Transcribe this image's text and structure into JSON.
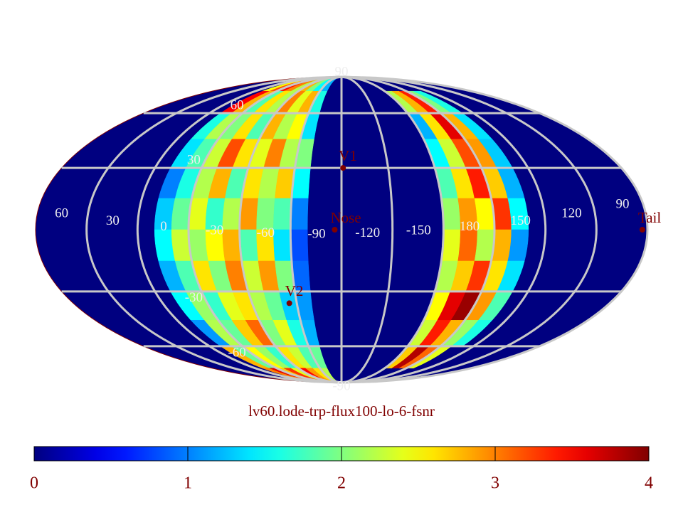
{
  "chart_data": {
    "type": "mollweide-heatmap",
    "title": "lv60.lode-trp-flux100-lo-6-fsnr",
    "colormap": "jet",
    "center_lon": -90,
    "lon_ticks": [
      60,
      30,
      0,
      -30,
      -60,
      -90,
      -120,
      -150,
      180,
      150,
      120,
      90
    ],
    "lat_ticks": [
      90,
      60,
      30,
      -30,
      -60,
      -90
    ],
    "lat_edges": [
      90,
      75,
      60,
      45,
      30,
      15,
      0,
      -15,
      -30,
      -45,
      -60,
      -75,
      -90
    ],
    "swaths": [
      {
        "lon_edges": [
          20,
          10,
          0,
          -10,
          -20,
          -30,
          -40,
          -50,
          -60,
          -70
        ],
        "values": [
          [
            2.5,
            3.2,
            3.5,
            3,
            2.2,
            2.8,
            2,
            1.5,
            1.2
          ],
          [
            3.5,
            2.8,
            1.8,
            2.6,
            2.2,
            3,
            2.4,
            2.8,
            1.6
          ],
          [
            1.6,
            2.2,
            2,
            2.6,
            1.8,
            2.8,
            2.2,
            2.5,
            1.4
          ],
          [
            1.4,
            1.8,
            2.3,
            3.2,
            2.6,
            2.4,
            3,
            2.2,
            2
          ],
          [
            1,
            1.6,
            2.2,
            2.8,
            1.8,
            2.6,
            2.2,
            2.7,
            1.5
          ],
          [
            1.3,
            1.9,
            2.4,
            1.7,
            2.2,
            2.9,
            2,
            1.8,
            1
          ],
          [
            1.5,
            2.3,
            2.1,
            2.5,
            2.8,
            1.8,
            2.6,
            1.4,
            0.8
          ],
          [
            1.2,
            1.8,
            2.6,
            2,
            3,
            2.3,
            2.9,
            2,
            0.9
          ],
          [
            1.5,
            2.1,
            1.7,
            2.4,
            2.6,
            2.2,
            1.9,
            1.3,
            1.1
          ],
          [
            1.1,
            2.2,
            1.9,
            2.7,
            3.1,
            2,
            2.4,
            1.6,
            1.2
          ],
          [
            2.8,
            1.9,
            2.5,
            2.1,
            1.7,
            2.6,
            2.3,
            1.8,
            1.9
          ],
          [
            3,
            3.6,
            2.7,
            3.3,
            2.4,
            3.5,
            2.9,
            2.6,
            2.2
          ]
        ]
      },
      {
        "lon_edges": [
          -150,
          -160,
          -170,
          -180,
          -190,
          -200
        ],
        "values": [
          [
            null,
            null,
            null,
            null,
            null
          ],
          [
            2.2,
            2.8,
            3.4,
            2,
            1.6
          ],
          [
            1.2,
            2.6,
            3.6,
            2.8,
            1.4
          ],
          [
            1.5,
            2.3,
            3.2,
            2.9,
            1.3
          ],
          [
            1.8,
            2.6,
            3.4,
            2.7,
            1.2
          ],
          [
            2.1,
            2.9,
            2.5,
            3.3,
            1.5
          ],
          [
            2.4,
            3.1,
            2.2,
            2.8,
            1.1
          ],
          [
            2.2,
            2.7,
            3.3,
            2.6,
            1.4
          ],
          [
            2.5,
            3.6,
            3.9,
            2.9,
            1.8
          ],
          [
            2.3,
            3.4,
            2.8,
            2.1,
            1.6
          ],
          [
            2.7,
            3.8,
            3.1,
            2.4,
            null
          ],
          [
            null,
            null,
            null,
            null,
            null
          ]
        ]
      }
    ],
    "markers": [
      {
        "label": "V1",
        "lon": -91,
        "lat": 30
      },
      {
        "label": "Nose",
        "lon": -86,
        "lat": 0
      },
      {
        "label": "V2",
        "lon": -55,
        "lat": -36
      },
      {
        "label": "Tail",
        "lon": 93,
        "lat": 0
      }
    ],
    "colorbar": {
      "lim": [
        0,
        4
      ],
      "ticks": [
        0,
        1,
        2,
        3,
        4
      ]
    }
  }
}
